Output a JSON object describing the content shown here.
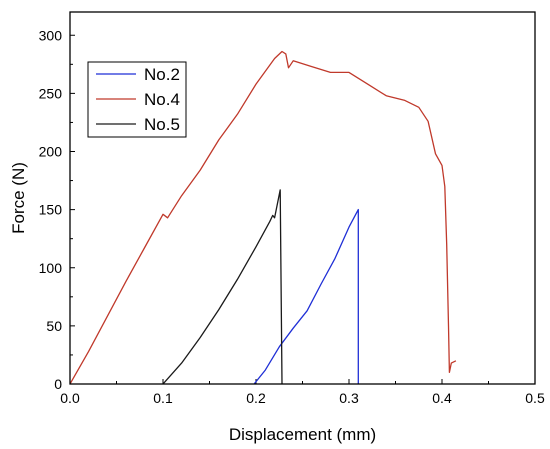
{
  "chart_data": {
    "type": "line",
    "title": "",
    "xlabel": "Displacement (mm)",
    "ylabel": "Force (N)",
    "xlim": [
      0.0,
      0.5
    ],
    "ylim": [
      0,
      320
    ],
    "xticks": [
      0.0,
      0.1,
      0.2,
      0.3,
      0.4,
      0.5
    ],
    "xtick_labels": [
      "0.0",
      "0.1",
      "0.2",
      "0.3",
      "0.4",
      "0.5"
    ],
    "yticks": [
      0,
      50,
      100,
      150,
      200,
      250,
      300
    ],
    "ytick_labels": [
      "0",
      "50",
      "100",
      "150",
      "200",
      "250",
      "300"
    ],
    "grid": false,
    "legend_position": "top-left",
    "series": [
      {
        "name": "No.2",
        "color": "#1f2fd6",
        "points": [
          [
            0.198,
            0
          ],
          [
            0.21,
            12
          ],
          [
            0.225,
            32
          ],
          [
            0.24,
            48
          ],
          [
            0.255,
            63
          ],
          [
            0.27,
            86
          ],
          [
            0.285,
            108
          ],
          [
            0.3,
            135
          ],
          [
            0.31,
            150
          ],
          [
            0.31,
            0
          ]
        ]
      },
      {
        "name": "No.4",
        "color": "#c0392b",
        "points": [
          [
            0.0,
            0
          ],
          [
            0.02,
            28
          ],
          [
            0.04,
            58
          ],
          [
            0.06,
            88
          ],
          [
            0.08,
            117
          ],
          [
            0.1,
            146
          ],
          [
            0.105,
            143
          ],
          [
            0.12,
            162
          ],
          [
            0.14,
            184
          ],
          [
            0.16,
            210
          ],
          [
            0.18,
            232
          ],
          [
            0.2,
            258
          ],
          [
            0.22,
            280
          ],
          [
            0.228,
            286
          ],
          [
            0.232,
            284
          ],
          [
            0.235,
            272
          ],
          [
            0.24,
            278
          ],
          [
            0.26,
            273
          ],
          [
            0.28,
            268
          ],
          [
            0.3,
            268
          ],
          [
            0.32,
            258
          ],
          [
            0.34,
            248
          ],
          [
            0.36,
            244
          ],
          [
            0.375,
            238
          ],
          [
            0.385,
            226
          ],
          [
            0.393,
            198
          ],
          [
            0.4,
            188
          ],
          [
            0.403,
            170
          ],
          [
            0.405,
            120
          ],
          [
            0.407,
            50
          ],
          [
            0.408,
            10
          ],
          [
            0.41,
            18
          ],
          [
            0.415,
            20
          ]
        ]
      },
      {
        "name": "No.5",
        "color": "#1a1a1a",
        "points": [
          [
            0.1,
            0
          ],
          [
            0.12,
            18
          ],
          [
            0.14,
            40
          ],
          [
            0.16,
            64
          ],
          [
            0.18,
            90
          ],
          [
            0.2,
            118
          ],
          [
            0.215,
            140
          ],
          [
            0.218,
            145
          ],
          [
            0.22,
            143
          ],
          [
            0.226,
            167
          ],
          [
            0.228,
            0
          ]
        ]
      }
    ]
  }
}
